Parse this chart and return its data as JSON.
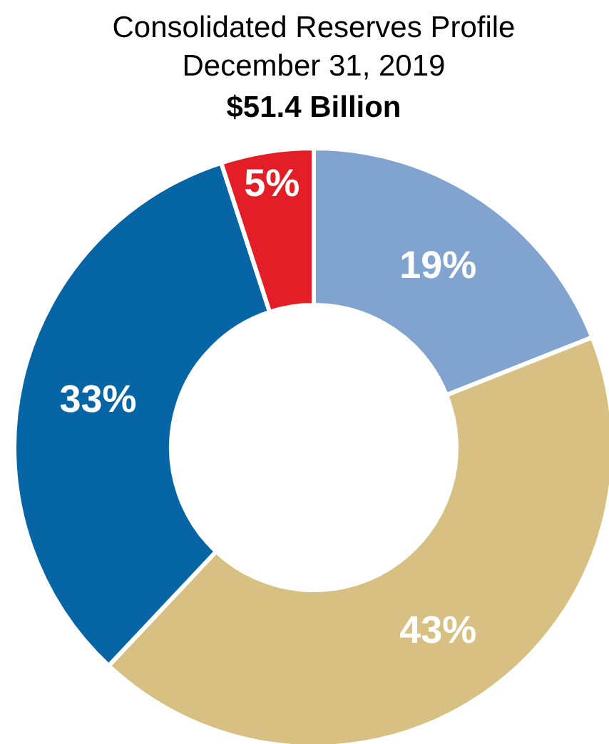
{
  "chart_data": {
    "type": "donut",
    "title": "Consolidated Reserves Profile",
    "subtitle": "December 31, 2019",
    "annotations": [
      "$51.4 Billion"
    ],
    "categories": [
      null,
      null,
      null,
      null
    ],
    "values": [
      19,
      43,
      33,
      5
    ],
    "value_labels": [
      "19%",
      "43%",
      "33%",
      "5%"
    ],
    "colors": [
      "#81a3cf",
      "#d8bf82",
      "#0565a5",
      "#e41e26"
    ]
  }
}
